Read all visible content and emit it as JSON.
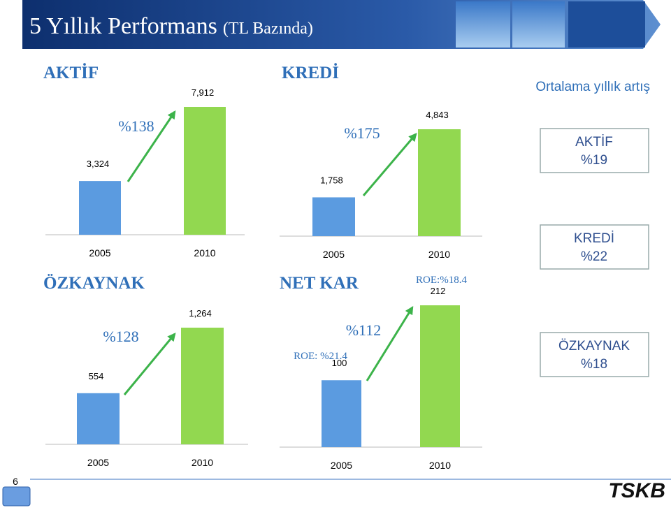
{
  "header": {
    "title": "5 Yıllık Performans",
    "subtitle": "(TL Bazında)"
  },
  "chart_data": [
    {
      "type": "bar",
      "title": "AKTİF",
      "categories": [
        "2005",
        "2010"
      ],
      "values": [
        3324,
        7912
      ],
      "value_labels": [
        "3,324",
        "7,912"
      ],
      "growth_label": "%138",
      "colors": [
        "#5b9be0",
        "#92d850"
      ]
    },
    {
      "type": "bar",
      "title": "KREDİ",
      "categories": [
        "2005",
        "2010"
      ],
      "values": [
        1758,
        4843
      ],
      "value_labels": [
        "1,758",
        "4,843"
      ],
      "growth_label": "%175",
      "colors": [
        "#5b9be0",
        "#92d850"
      ]
    },
    {
      "type": "bar",
      "title": "ÖZKAYNAK",
      "categories": [
        "2005",
        "2010"
      ],
      "values": [
        554,
        1264
      ],
      "value_labels": [
        "554",
        "1,264"
      ],
      "growth_label": "%128",
      "colors": [
        "#5b9be0",
        "#92d850"
      ]
    },
    {
      "type": "bar",
      "title": "NET KAR",
      "categories": [
        "2005",
        "2010"
      ],
      "values": [
        100,
        212
      ],
      "value_labels": [
        "100",
        "212"
      ],
      "growth_label": "%112",
      "roe_labels": [
        "ROE: %21.4",
        "ROE:%18.4"
      ],
      "colors": [
        "#5b9be0",
        "#92d850"
      ]
    }
  ],
  "summary": {
    "title": "Ortalama yıllık artış",
    "items": [
      {
        "label": "AKTİF",
        "value": "%19"
      },
      {
        "label": "KREDİ",
        "value": "%22"
      },
      {
        "label": "ÖZKAYNAK",
        "value": "%18"
      }
    ]
  },
  "footer": {
    "page": "6",
    "logo": "TSKB"
  }
}
